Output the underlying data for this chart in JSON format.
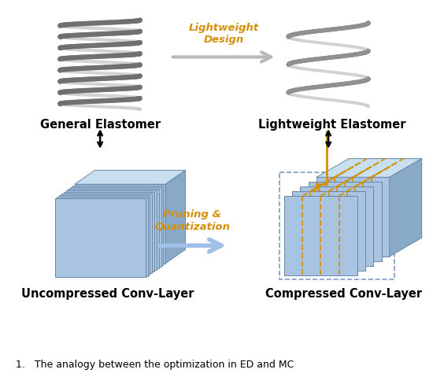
{
  "bg_color": "#ffffff",
  "label_general_elastomer": "General Elastomer",
  "label_lightweight_elastomer": "Lightweight Elastomer",
  "label_uncompressed": "Uncompressed Conv-Layer",
  "label_compressed": "Compressed Conv-Layer",
  "label_lightweight_design": "Lightweight\nDesign",
  "label_pruning_quantization": "Pruning &\nQuantization",
  "arrow_gray_color": "#b8b8b8",
  "arrow_blue_color": "#a0c0e8",
  "orange_color": "#d4900a",
  "black_color": "#000000",
  "box_blue_face": "#a8c4e0",
  "box_blue_edge": "#6888a8",
  "box_blue_top": "#c8dff0",
  "box_blue_side": "#88aac8",
  "label_fontsize": 10.5,
  "caption_fontsize": 9,
  "figsize": [
    5.64,
    4.74
  ]
}
